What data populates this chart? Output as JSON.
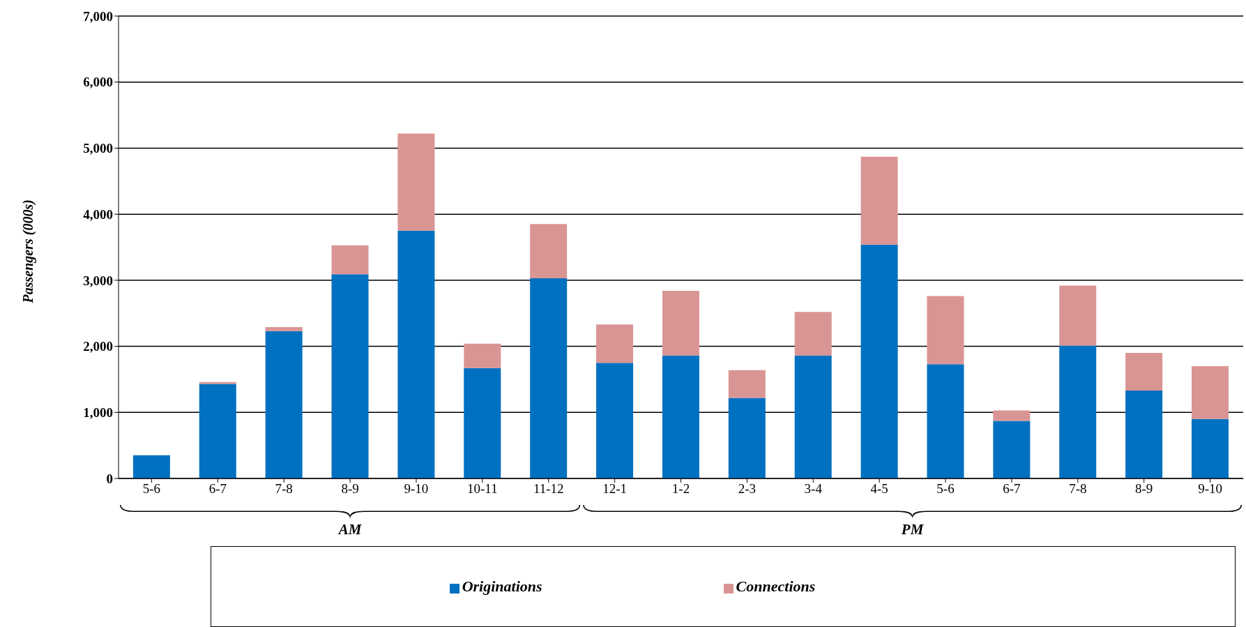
{
  "chart_data": {
    "type": "bar",
    "stacked": true,
    "ylabel": "Passengers  (000s)",
    "categories": [
      "5-6",
      "6-7",
      "7-8",
      "8-9",
      "9-10",
      "10-11",
      "11-12",
      "12-1",
      "1-2",
      "2-3",
      "3-4",
      "4-5",
      "5-6",
      "6-7",
      "7-8",
      "8-9",
      "9-10"
    ],
    "series": [
      {
        "name": "Originations",
        "color": "#0070c0",
        "values": [
          350,
          1430,
          2230,
          3090,
          3750,
          1670,
          3030,
          1750,
          1860,
          1220,
          1860,
          3540,
          1730,
          870,
          2010,
          1330,
          900
        ]
      },
      {
        "name": "Connections",
        "color": "#d99594",
        "values": [
          0,
          30,
          60,
          440,
          1470,
          370,
          820,
          580,
          980,
          420,
          660,
          1330,
          1030,
          160,
          910,
          570,
          800
        ]
      }
    ],
    "ylim": [
      0,
      7000
    ],
    "yticks": [
      0,
      {
        "value": 1000,
        "label": "1,000"
      },
      {
        "value": 2000,
        "label": "2,000"
      },
      {
        "value": 3000,
        "label": "3,000"
      },
      {
        "value": 4000,
        "label": "4,000"
      },
      {
        "value": 5000,
        "label": "5,000"
      },
      {
        "value": 6000,
        "label": "6,000"
      },
      {
        "value": 7000,
        "label": "7,000"
      }
    ],
    "grid": "y",
    "legend": "bottom",
    "annotations": [
      "AM",
      "PM"
    ]
  }
}
